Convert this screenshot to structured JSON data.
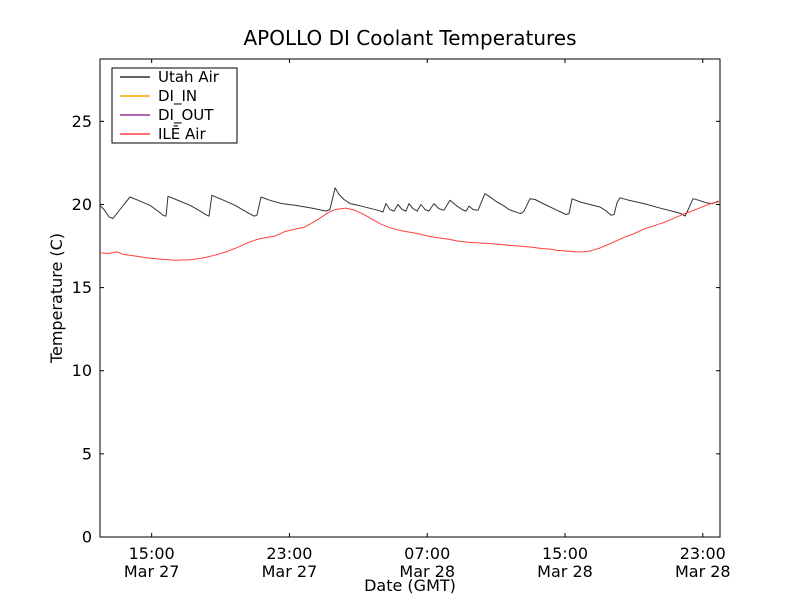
{
  "figure": {
    "background": "#ffffff",
    "axes_color": "#000000"
  },
  "chart_data": {
    "type": "line",
    "title": "APOLLO DI Coolant Temperatures",
    "xlabel": "Date (GMT)",
    "ylabel": "Temperature (C)",
    "grid": false,
    "legend_position": "upper left",
    "x_unit": "hours, 0 = Mar 27 12:00 GMT",
    "xlim": [
      0,
      36
    ],
    "ylim": [
      0,
      28.75
    ],
    "xticks": [
      {
        "t": 3,
        "time": "15:00",
        "date": "Mar 27"
      },
      {
        "t": 11,
        "time": "23:00",
        "date": "Mar 27"
      },
      {
        "t": 19,
        "time": "07:00",
        "date": "Mar 28"
      },
      {
        "t": 27,
        "time": "15:00",
        "date": "Mar 28"
      },
      {
        "t": 35,
        "time": "23:00",
        "date": "Mar 28"
      }
    ],
    "yticks": [
      0,
      5,
      10,
      15,
      20,
      25
    ],
    "series": [
      {
        "name": "Utah Air",
        "color": "#333333",
        "points": [
          [
            0.0,
            19.95
          ],
          [
            0.23,
            19.7
          ],
          [
            0.52,
            19.25
          ],
          [
            0.75,
            19.15
          ],
          [
            1.05,
            19.55
          ],
          [
            1.39,
            20.0
          ],
          [
            1.74,
            20.45
          ],
          [
            2.21,
            20.25
          ],
          [
            2.9,
            19.95
          ],
          [
            3.37,
            19.6
          ],
          [
            3.66,
            19.35
          ],
          [
            3.83,
            19.3
          ],
          [
            3.95,
            20.5
          ],
          [
            4.41,
            20.3
          ],
          [
            5.23,
            19.95
          ],
          [
            5.81,
            19.6
          ],
          [
            6.21,
            19.35
          ],
          [
            6.33,
            19.3
          ],
          [
            6.5,
            20.55
          ],
          [
            6.97,
            20.35
          ],
          [
            7.84,
            19.95
          ],
          [
            8.59,
            19.5
          ],
          [
            8.94,
            19.3
          ],
          [
            9.11,
            19.35
          ],
          [
            9.35,
            20.45
          ],
          [
            9.87,
            20.25
          ],
          [
            10.57,
            20.05
          ],
          [
            11.32,
            19.95
          ],
          [
            12.19,
            19.8
          ],
          [
            12.89,
            19.65
          ],
          [
            13.12,
            19.6
          ],
          [
            13.35,
            19.7
          ],
          [
            13.65,
            21.0
          ],
          [
            13.88,
            20.6
          ],
          [
            14.17,
            20.3
          ],
          [
            14.52,
            20.05
          ],
          [
            14.98,
            19.95
          ],
          [
            15.56,
            19.8
          ],
          [
            16.14,
            19.65
          ],
          [
            16.43,
            19.55
          ],
          [
            16.6,
            20.05
          ],
          [
            16.84,
            19.7
          ],
          [
            17.07,
            19.6
          ],
          [
            17.3,
            20.0
          ],
          [
            17.54,
            19.7
          ],
          [
            17.77,
            19.6
          ],
          [
            17.94,
            20.05
          ],
          [
            18.17,
            19.75
          ],
          [
            18.41,
            19.6
          ],
          [
            18.64,
            20.0
          ],
          [
            18.87,
            19.7
          ],
          [
            19.1,
            19.6
          ],
          [
            19.39,
            20.05
          ],
          [
            19.68,
            19.75
          ],
          [
            19.97,
            19.65
          ],
          [
            20.32,
            20.25
          ],
          [
            20.67,
            19.95
          ],
          [
            21.02,
            19.7
          ],
          [
            21.25,
            19.6
          ],
          [
            21.43,
            19.9
          ],
          [
            21.66,
            19.7
          ],
          [
            21.95,
            19.65
          ],
          [
            22.35,
            20.65
          ],
          [
            22.58,
            20.5
          ],
          [
            23.05,
            20.15
          ],
          [
            23.4,
            19.95
          ],
          [
            23.75,
            19.7
          ],
          [
            24.27,
            19.5
          ],
          [
            24.44,
            19.45
          ],
          [
            24.62,
            19.6
          ],
          [
            24.97,
            20.35
          ],
          [
            25.26,
            20.3
          ],
          [
            25.84,
            20.0
          ],
          [
            26.54,
            19.65
          ],
          [
            27.06,
            19.4
          ],
          [
            27.23,
            19.45
          ],
          [
            27.41,
            20.35
          ],
          [
            27.87,
            20.15
          ],
          [
            28.45,
            20.0
          ],
          [
            29.03,
            19.85
          ],
          [
            29.4,
            19.6
          ],
          [
            29.67,
            19.35
          ],
          [
            29.85,
            19.4
          ],
          [
            30.02,
            20.1
          ],
          [
            30.19,
            20.4
          ],
          [
            30.72,
            20.25
          ],
          [
            31.59,
            20.05
          ],
          [
            32.46,
            19.8
          ],
          [
            33.22,
            19.6
          ],
          [
            33.74,
            19.45
          ],
          [
            33.97,
            19.3
          ],
          [
            34.2,
            19.8
          ],
          [
            34.43,
            20.35
          ],
          [
            34.78,
            20.25
          ],
          [
            35.19,
            20.1
          ],
          [
            35.55,
            20.05
          ],
          [
            35.9,
            20.2
          ]
        ]
      },
      {
        "name": "DI_IN",
        "color": "#ffa500",
        "points": []
      },
      {
        "name": "DI_OUT",
        "color": "#993399",
        "points": []
      },
      {
        "name": "ILĒ Air",
        "color": "#ff4040",
        "points": [
          [
            0.0,
            17.1
          ],
          [
            0.46,
            17.05
          ],
          [
            0.99,
            17.15
          ],
          [
            1.34,
            17.0
          ],
          [
            2.03,
            16.9
          ],
          [
            2.79,
            16.78
          ],
          [
            3.6,
            16.7
          ],
          [
            4.35,
            16.65
          ],
          [
            5.23,
            16.68
          ],
          [
            5.98,
            16.78
          ],
          [
            6.68,
            16.95
          ],
          [
            7.32,
            17.15
          ],
          [
            7.95,
            17.4
          ],
          [
            8.59,
            17.7
          ],
          [
            9.17,
            17.92
          ],
          [
            9.58,
            18.0
          ],
          [
            10.16,
            18.1
          ],
          [
            10.69,
            18.35
          ],
          [
            11.26,
            18.5
          ],
          [
            11.84,
            18.62
          ],
          [
            12.42,
            18.95
          ],
          [
            12.95,
            19.3
          ],
          [
            13.24,
            19.5
          ],
          [
            13.53,
            19.65
          ],
          [
            13.82,
            19.72
          ],
          [
            14.28,
            19.78
          ],
          [
            14.75,
            19.67
          ],
          [
            15.21,
            19.45
          ],
          [
            15.79,
            19.12
          ],
          [
            16.31,
            18.82
          ],
          [
            16.84,
            18.6
          ],
          [
            17.36,
            18.45
          ],
          [
            17.88,
            18.35
          ],
          [
            18.46,
            18.25
          ],
          [
            19.04,
            18.1
          ],
          [
            19.62,
            18.0
          ],
          [
            20.21,
            17.92
          ],
          [
            20.79,
            17.8
          ],
          [
            21.48,
            17.72
          ],
          [
            22.18,
            17.68
          ],
          [
            22.88,
            17.63
          ],
          [
            23.57,
            17.56
          ],
          [
            24.27,
            17.5
          ],
          [
            24.97,
            17.44
          ],
          [
            25.66,
            17.35
          ],
          [
            26.25,
            17.3
          ],
          [
            26.54,
            17.24
          ],
          [
            27.06,
            17.2
          ],
          [
            27.64,
            17.15
          ],
          [
            28.11,
            17.15
          ],
          [
            28.51,
            17.22
          ],
          [
            28.97,
            17.36
          ],
          [
            29.44,
            17.56
          ],
          [
            29.96,
            17.8
          ],
          [
            30.48,
            18.05
          ],
          [
            30.9,
            18.2
          ],
          [
            31.65,
            18.55
          ],
          [
            32.23,
            18.75
          ],
          [
            32.69,
            18.9
          ],
          [
            33.16,
            19.1
          ],
          [
            33.62,
            19.3
          ],
          [
            33.97,
            19.45
          ],
          [
            34.49,
            19.65
          ],
          [
            34.84,
            19.8
          ],
          [
            35.13,
            19.92
          ],
          [
            35.55,
            20.08
          ],
          [
            35.9,
            20.15
          ]
        ]
      }
    ]
  }
}
